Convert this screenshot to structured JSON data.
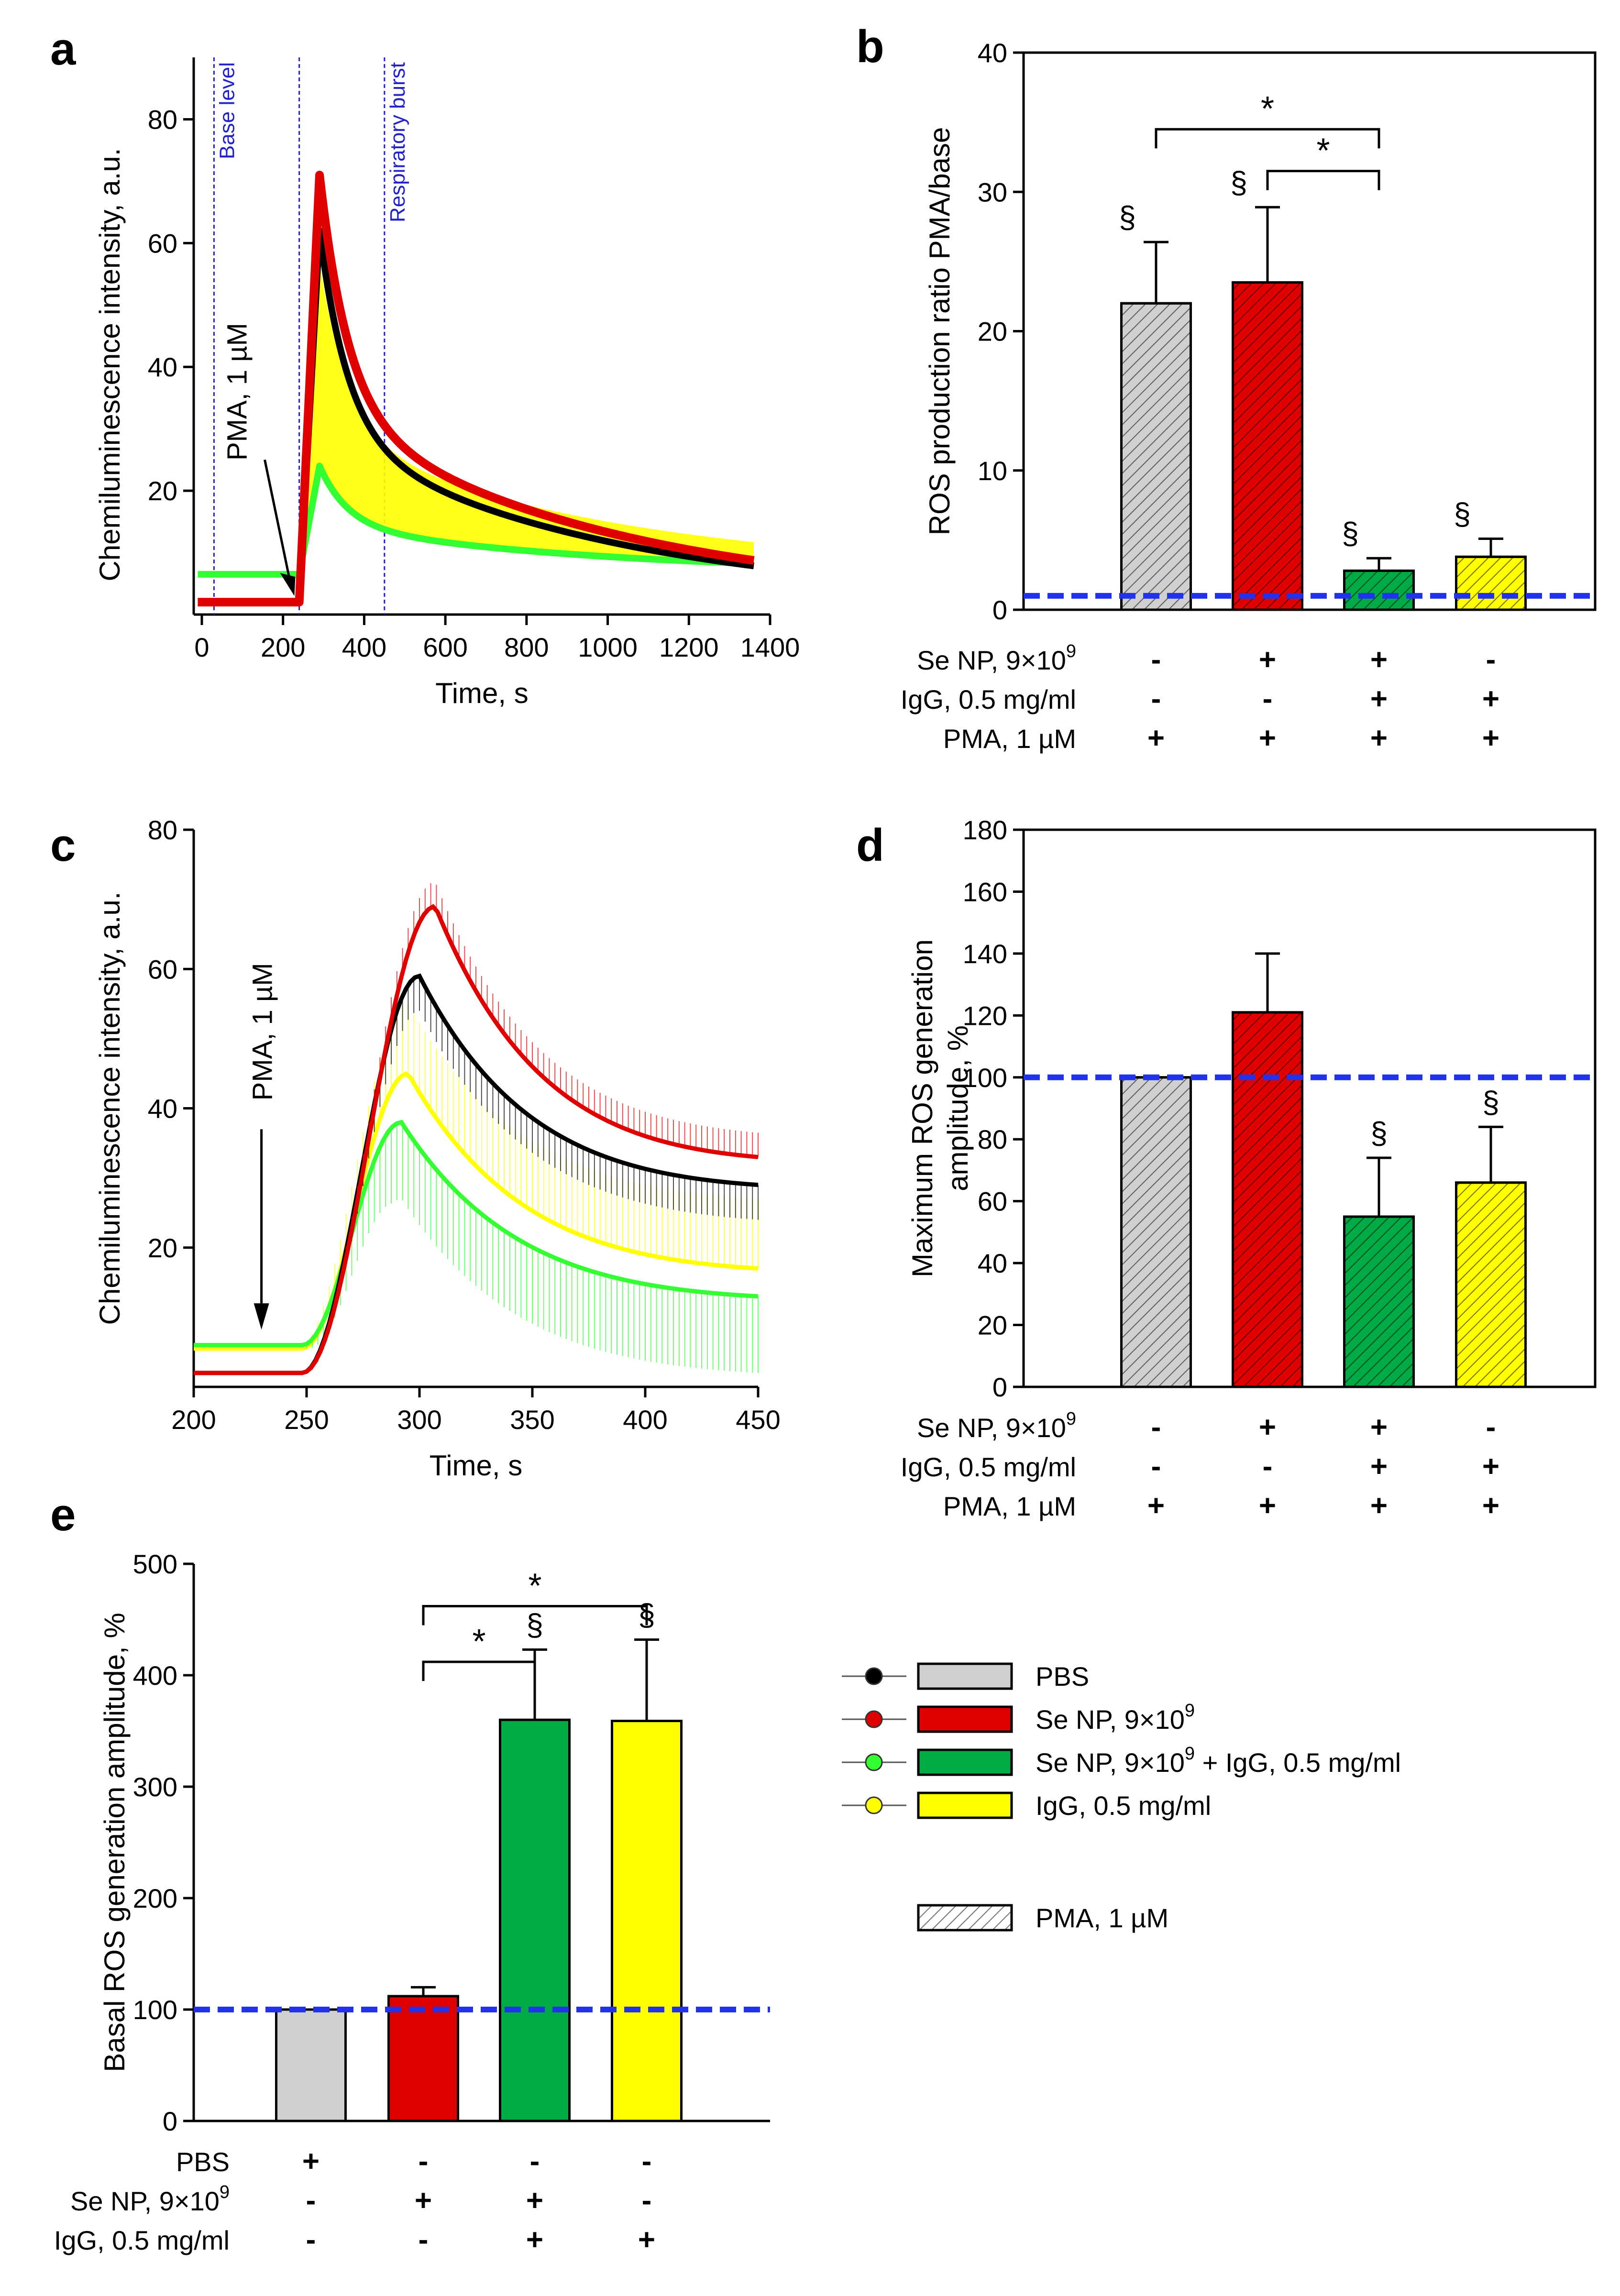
{
  "colors": {
    "pbs": "#000000",
    "pbs_bar": "#d0d0d0",
    "se_np": "#e00000",
    "se_igg": "#00aa44",
    "igg": "#ffff00",
    "green_trace": "#33ff33",
    "baseline": "#2233ee",
    "marker_lines": "#2222cc"
  },
  "chart_data": [
    {
      "panel": "a",
      "type": "line",
      "xlabel": "Time, s",
      "ylabel": "Chemiluminescence intensity, a.u.",
      "xlim": [
        -20,
        1400
      ],
      "ylim": [
        0,
        90
      ],
      "xticks": [
        0,
        200,
        400,
        600,
        800,
        1000,
        1200,
        1400
      ],
      "yticks": [
        20,
        40,
        60,
        80
      ],
      "vlines": [
        {
          "x": 30,
          "label": "Base level"
        },
        {
          "x": 240,
          "label": ""
        },
        {
          "x": 450,
          "label": "Respiratory burst"
        }
      ],
      "annotation": "PMA, 1 µM",
      "series": [
        {
          "name": "PBS",
          "color": "black",
          "base": 2,
          "peak": 62,
          "half": 36
        },
        {
          "name": "Se NP",
          "color": "red",
          "base": 2,
          "peak": 71,
          "half": 40
        },
        {
          "name": "Se NP + IgG",
          "color": "green",
          "base": 6.5,
          "peak": 24,
          "half": 12
        },
        {
          "name": "IgG",
          "color": "yellow",
          "base": 6.8,
          "peak": 57,
          "half": 16
        }
      ]
    },
    {
      "panel": "b",
      "type": "bar",
      "ylabel": "ROS production ratio PMA/base",
      "ylim": [
        0,
        40
      ],
      "yticks": [
        0,
        10,
        20,
        30,
        40
      ],
      "baseline": 1,
      "categories": [
        "PBS",
        "Se NP",
        "Se NP + IgG",
        "IgG"
      ],
      "values": [
        22,
        23.5,
        2.8,
        3.8
      ],
      "errors": [
        4.4,
        5.4,
        0.9,
        1.3
      ],
      "hatched": true,
      "markers": [
        "§",
        "§",
        "§",
        "§"
      ],
      "significance": [
        {
          "from": 0,
          "to": 2,
          "y": 34.5,
          "label": "*"
        },
        {
          "from": 1,
          "to": 2,
          "y": 31.5,
          "label": "*"
        }
      ],
      "condition_rows": [
        {
          "label": "Se NP, 9×10",
          "sup": "9",
          "signs": [
            "-",
            "+",
            "+",
            "-"
          ]
        },
        {
          "label": "IgG, 0.5 mg/ml",
          "sup": "",
          "signs": [
            "-",
            "-",
            "+",
            "+"
          ]
        },
        {
          "label": "PMA, 1 µM",
          "sup": "",
          "signs": [
            "+",
            "+",
            "+",
            "+"
          ]
        }
      ]
    },
    {
      "panel": "c",
      "type": "line",
      "xlabel": "Time, s",
      "ylabel": "Chemiluminescence intensity, a.u.",
      "xlim": [
        200,
        450
      ],
      "ylim": [
        0,
        80
      ],
      "xticks": [
        200,
        250,
        300,
        350,
        400,
        450
      ],
      "yticks": [
        20,
        40,
        60,
        80
      ],
      "annotation": "PMA, 1 µM",
      "arrow_x": 230,
      "series": [
        {
          "name": "PBS",
          "color": "black",
          "base": 2,
          "peak": 59,
          "peak_x": 300,
          "end": 29,
          "err": 5
        },
        {
          "name": "Se NP",
          "color": "red",
          "base": 2,
          "peak": 69,
          "peak_x": 307,
          "end": 33,
          "err": 3.5
        },
        {
          "name": "Se NP + IgG",
          "color": "green",
          "base": 6,
          "peak": 38,
          "peak_x": 292,
          "end": 13,
          "err": 11
        },
        {
          "name": "IgG",
          "color": "yellow",
          "base": 5.5,
          "peak": 45,
          "peak_x": 295,
          "end": 17,
          "err": 10
        }
      ]
    },
    {
      "panel": "d",
      "type": "bar",
      "ylabel": "Maximum ROS generation amplitude, %",
      "ylim": [
        0,
        180
      ],
      "yticks": [
        0,
        20,
        40,
        60,
        80,
        100,
        120,
        140,
        160,
        180
      ],
      "baseline": 100,
      "categories": [
        "PBS",
        "Se NP",
        "Se NP + IgG",
        "IgG"
      ],
      "values": [
        100,
        121,
        55,
        66
      ],
      "errors": [
        0,
        19,
        19,
        18
      ],
      "hatched": true,
      "markers": [
        "",
        "",
        "§",
        "§"
      ],
      "condition_rows": [
        {
          "label": "Se NP, 9×10",
          "sup": "9",
          "signs": [
            "-",
            "+",
            "+",
            "-"
          ]
        },
        {
          "label": "IgG, 0.5 mg/ml",
          "sup": "",
          "signs": [
            "-",
            "-",
            "+",
            "+"
          ]
        },
        {
          "label": "PMA, 1 µM",
          "sup": "",
          "signs": [
            "+",
            "+",
            "+",
            "+"
          ]
        }
      ]
    },
    {
      "panel": "e",
      "type": "bar",
      "ylabel": "Basal ROS generation amplitude, %",
      "ylim": [
        0,
        500
      ],
      "yticks": [
        0,
        100,
        200,
        300,
        400,
        500
      ],
      "baseline": 100,
      "categories": [
        "PBS",
        "Se NP",
        "Se NP + IgG",
        "IgG"
      ],
      "values": [
        100,
        112,
        360,
        359
      ],
      "errors": [
        0,
        8,
        63,
        73
      ],
      "hatched": false,
      "markers": [
        "",
        "",
        "§",
        "§"
      ],
      "significance": [
        {
          "from": 1,
          "to": 2,
          "y": 412,
          "label": "*"
        },
        {
          "from": 1,
          "to": 3,
          "y": 462,
          "label": "*"
        }
      ],
      "condition_rows": [
        {
          "label": "PBS",
          "sup": "",
          "signs": [
            "+",
            "-",
            "-",
            "-"
          ]
        },
        {
          "label": "Se NP, 9×10",
          "sup": "9",
          "signs": [
            "-",
            "+",
            "+",
            "-"
          ]
        },
        {
          "label": "IgG, 0.5 mg/ml",
          "sup": "",
          "signs": [
            "-",
            "-",
            "+",
            "+"
          ]
        }
      ]
    }
  ],
  "legend": {
    "items": [
      {
        "label": "PBS",
        "sup": "",
        "suffix": ""
      },
      {
        "label": "Se NP, 9×10",
        "sup": "9",
        "suffix": ""
      },
      {
        "label": "Se NP, 9×10",
        "sup": "9",
        "suffix": " + IgG, 0.5 mg/ml"
      },
      {
        "label": "IgG, 0.5 mg/ml",
        "sup": "",
        "suffix": ""
      }
    ],
    "hatch_label": "PMA, 1 µM"
  }
}
